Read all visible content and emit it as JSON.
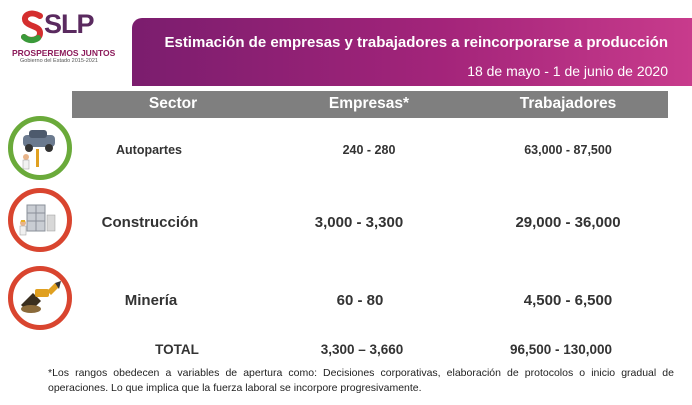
{
  "logo": {
    "text": "SLP",
    "tagline": "PROSPEREMOS JUNTOS",
    "sub": "Gobierno del Estado 2015-2021"
  },
  "banner": {
    "title": "Estimación de empresas y trabajadores a reincorporarse a producción",
    "date": "18 de mayo - 1 de junio de 2020"
  },
  "table": {
    "headers": [
      "Sector",
      "Empresas*",
      "Trabajadores"
    ],
    "rows": [
      {
        "sector": "Autopartes",
        "empresas": "240 - 280",
        "trabajadores": "63,000 - 87,500",
        "icon": "car-repair-icon",
        "ring": "#6aaa3a"
      },
      {
        "sector": "Construcción",
        "empresas": "3,000 - 3,300",
        "trabajadores": "29,000 - 36,000",
        "icon": "construction-icon",
        "ring": "#d9452f"
      },
      {
        "sector": "Minería",
        "empresas": "60 - 80",
        "trabajadores": "4,500 - 6,500",
        "icon": "mining-excavator-icon",
        "ring": "#d9452f"
      }
    ],
    "total": {
      "label": "TOTAL",
      "empresas": "3,300 – 3,660",
      "trabajadores": "96,500 - 130,000"
    }
  },
  "footnote": "*Los rangos obedecen a variables de apertura como: Decisiones corporativas, elaboración de protocolos o inicio gradual de operaciones. Lo que implica que la fuerza laboral se incorpore progresivamente.",
  "colors": {
    "banner": "#a3247a",
    "header_row": "#7f7f7f",
    "green_ring": "#6aaa3a",
    "red_ring": "#d9452f"
  }
}
